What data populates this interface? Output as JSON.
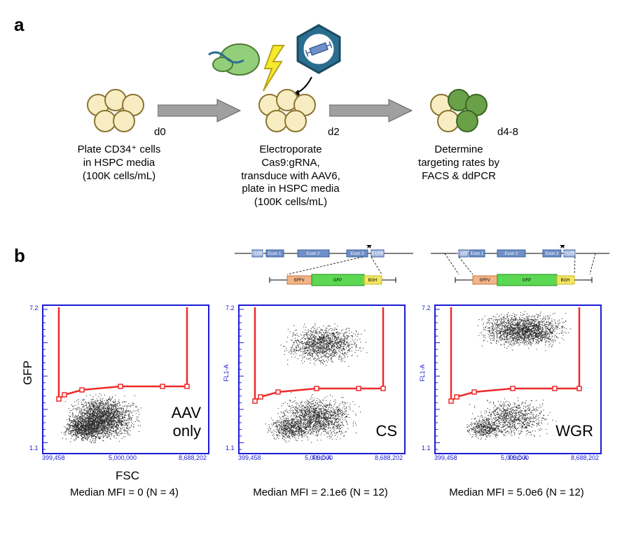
{
  "panelA": {
    "label": "a",
    "steps": {
      "s0": {
        "d": "d0",
        "text": "Plate CD34⁺ cells in HSPC media (100K cells/mL)"
      },
      "s2": {
        "d": "d2",
        "text": "Electroporate Cas9:gRNA, transduce with AAV6, plate in HSPC media (100K cells/mL)"
      },
      "s4": {
        "d": "d4-8",
        "text": "Determine targeting rates by FACS & ddPCR"
      }
    },
    "colors": {
      "cell_light": "#f8edc2",
      "cell_green": "#6aa048",
      "cell_stroke": "#8a7430",
      "arrow_fill": "#a0a0a0",
      "bolt": "#f7e92e",
      "cas9": "#93ce7b",
      "hex_outer": "#2a6e8f",
      "virus_bg": "#ffffff"
    }
  },
  "panelB": {
    "label": "b",
    "y_axis": "GFP",
    "x_axis": "FSC",
    "tiny_y_axis": "FL1-A",
    "tiny_x_axis": "FSC-A",
    "axis_numbers": {
      "x_left": "399,458",
      "x_mid": "5,000,000",
      "x_right": "8,688,202",
      "y_bot": "1.1",
      "y_top": "7.2"
    },
    "plots": {
      "aav": {
        "title_l1": "AAV",
        "title_l2": "only",
        "footer": "Median MFI = 0 (N = 4)"
      },
      "cs": {
        "title_l1": "CS",
        "title_l2": "",
        "footer": "Median MFI = 2.1e6 (N = 12)"
      },
      "wgr": {
        "title_l1": "WGR",
        "title_l2": "",
        "footer": "Median MFI = 5.0e6 (N = 12)"
      }
    },
    "colors": {
      "gate": "#ee2a2a",
      "border": "#1b1bd4",
      "dot": "#2a2a2a"
    },
    "gene": {
      "labels": {
        "utr5": "5' UTR",
        "e1": "Exon 1",
        "e2": "Exon 2",
        "e3": "Exon 3",
        "utr3": "3' UTR",
        "sffv": "SFFV",
        "gfp": "GFP",
        "bgh": "BGH"
      }
    }
  }
}
